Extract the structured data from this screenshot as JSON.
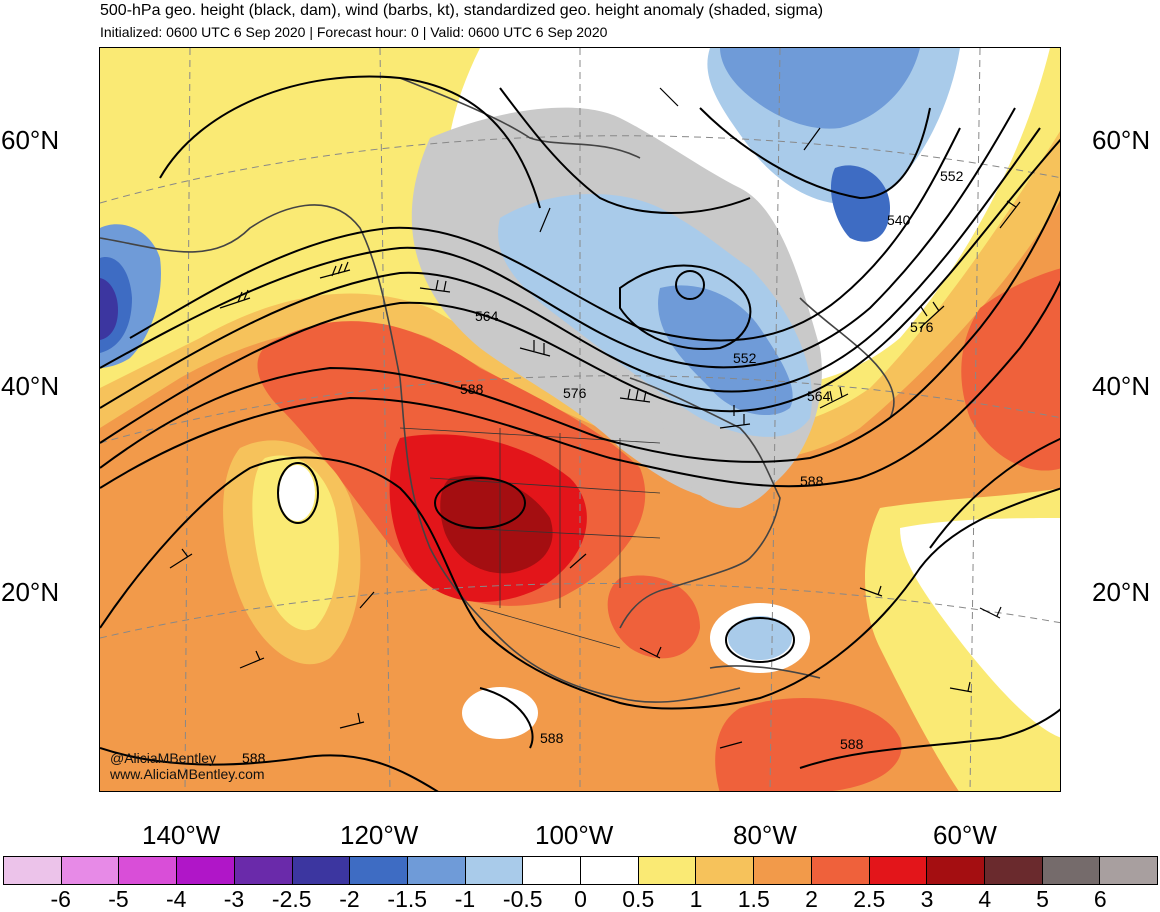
{
  "title": "500-hPa geo. height (black, dam), wind (barbs, kt), standardized geo. height anomaly (shaded, sigma)",
  "subtitle": "Initialized: 0600 UTC 6 Sep 2020 | Forecast hour: 0 | Valid: 0600 UTC 6 Sep 2020",
  "latitude_labels": [
    "60°N",
    "40°N",
    "20°N"
  ],
  "longitude_labels": [
    "140°W",
    "120°W",
    "100°W",
    "80°W",
    "60°W"
  ],
  "contour_labels": [
    "540",
    "552",
    "552",
    "564",
    "564",
    "576",
    "576",
    "588",
    "588",
    "588",
    "588",
    "588"
  ],
  "credit": {
    "twitter": "@AliciaMBentley",
    "website": "www.AliciaMBentley.com"
  },
  "colorbar": {
    "ticks": [
      "-6",
      "-5",
      "-4",
      "-3",
      "-2.5",
      "-2",
      "-1.5",
      "-1",
      "-0.5",
      "0",
      "0.5",
      "1",
      "1.5",
      "2",
      "2.5",
      "3",
      "4",
      "5",
      "6"
    ],
    "colors": [
      "#ecc3ea",
      "#e78ae7",
      "#d94ed8",
      "#b016c8",
      "#6a2aaa",
      "#3c36a0",
      "#3e6cc3",
      "#6f9bd8",
      "#a9cbea",
      "#ffffff",
      "#ffffff",
      "#faea74",
      "#f6c25b",
      "#f29a4a",
      "#ef613b",
      "#e3151a",
      "#a40e11",
      "#6a2a2d",
      "#756b6b",
      "#a89f9f"
    ]
  },
  "shading_colors": {
    "neg_0_5": "#a9cbea",
    "neg_1": "#6f9bd8",
    "neg_1_5": "#3e6cc3",
    "neg_2": "#3c36a0",
    "neutral": "#ffffff",
    "gray": "#c9c9c9",
    "pos_0_5": "#faea74",
    "pos_1": "#f6c25b",
    "pos_1_5": "#f29a4a",
    "pos_2": "#ef613b",
    "pos_2_5": "#e3151a",
    "pos_3": "#a40e11"
  }
}
